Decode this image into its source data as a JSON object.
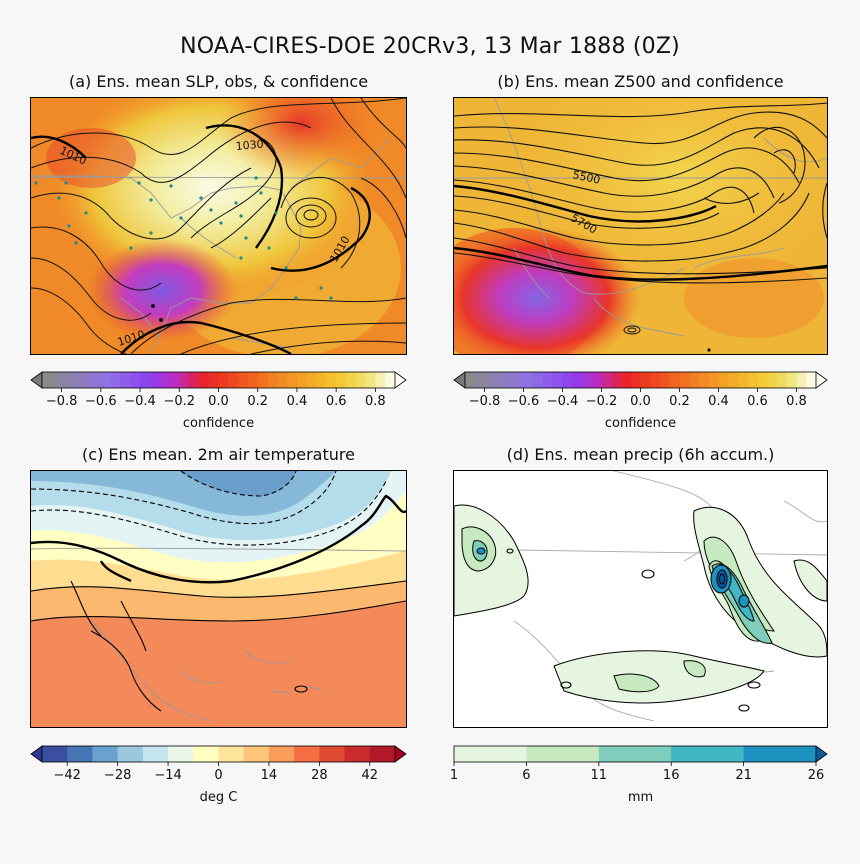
{
  "suptitle": "NOAA-CIRES-DOE 20CRv3, 13 Mar 1888 (0Z)",
  "panels": {
    "a": {
      "title": "(a) Ens. mean SLP, obs, & confidence",
      "contour_labels": [
        "1010",
        "1030",
        "1010",
        "1010"
      ]
    },
    "b": {
      "title": "(b) Ens. mean Z500 and confidence",
      "contour_labels": [
        "5500",
        "5700"
      ]
    },
    "c": {
      "title": "(c) Ens mean. 2m air temperature"
    },
    "d": {
      "title": "(d) Ens. mean precip (6h accum.)"
    }
  },
  "colorbars": {
    "confidence": {
      "label": "confidence",
      "ticks": [
        "−0.8",
        "−0.6",
        "−0.4",
        "−0.2",
        "0.0",
        "0.2",
        "0.4",
        "0.6",
        "0.8"
      ]
    },
    "temperature": {
      "label": "deg C",
      "ticks": [
        "−42",
        "−28",
        "−14",
        "0",
        "14",
        "28",
        "42"
      ]
    },
    "precip": {
      "label": "mm",
      "ticks": [
        "1",
        "6",
        "11",
        "16",
        "21",
        "26"
      ]
    }
  },
  "chart_data": [
    {
      "type": "heatmap",
      "title": "(a) Ens. mean SLP, obs, & confidence",
      "contour_levels": [
        1010,
        1030,
        1010,
        1010
      ],
      "colorbar": {
        "label": "confidence",
        "range": [
          -0.9,
          0.9
        ],
        "extend": "both",
        "colors": [
          "#7a7a7a",
          "#8f6be0",
          "#8a3ff0",
          "#c02bc0",
          "#e8202a",
          "#f04a1e",
          "#f27c22",
          "#f3a525",
          "#f3c730",
          "#efe060",
          "#f4f2b2",
          "#fbfbe8"
        ]
      }
    },
    {
      "type": "heatmap",
      "title": "(b) Ens. mean Z500 and confidence",
      "contour_levels": [
        5500,
        5700
      ],
      "colorbar": {
        "label": "confidence",
        "range": [
          -0.9,
          0.9
        ],
        "extend": "both"
      }
    },
    {
      "type": "heatmap",
      "title": "(c) Ens mean. 2m air temperature",
      "colorbar": {
        "label": "deg C",
        "range": [
          -49,
          49
        ],
        "step": 7,
        "extend": "both",
        "colors": [
          "#313695",
          "#4575b4",
          "#74add1",
          "#abd9e9",
          "#e0f3f8",
          "#ffffbf",
          "#fee090",
          "#fdae61",
          "#f46d43",
          "#d73027",
          "#a50026"
        ]
      }
    },
    {
      "type": "heatmap",
      "title": "(d) Ens. mean precip (6h accum.)",
      "colorbar": {
        "label": "mm",
        "range": [
          1,
          26
        ],
        "step": 5,
        "extend": "max",
        "colors": [
          "#e5f5e0",
          "#c7e9c0",
          "#7fcdbb",
          "#41b6c4",
          "#1d91c0",
          "#0c5a9a"
        ]
      }
    }
  ]
}
